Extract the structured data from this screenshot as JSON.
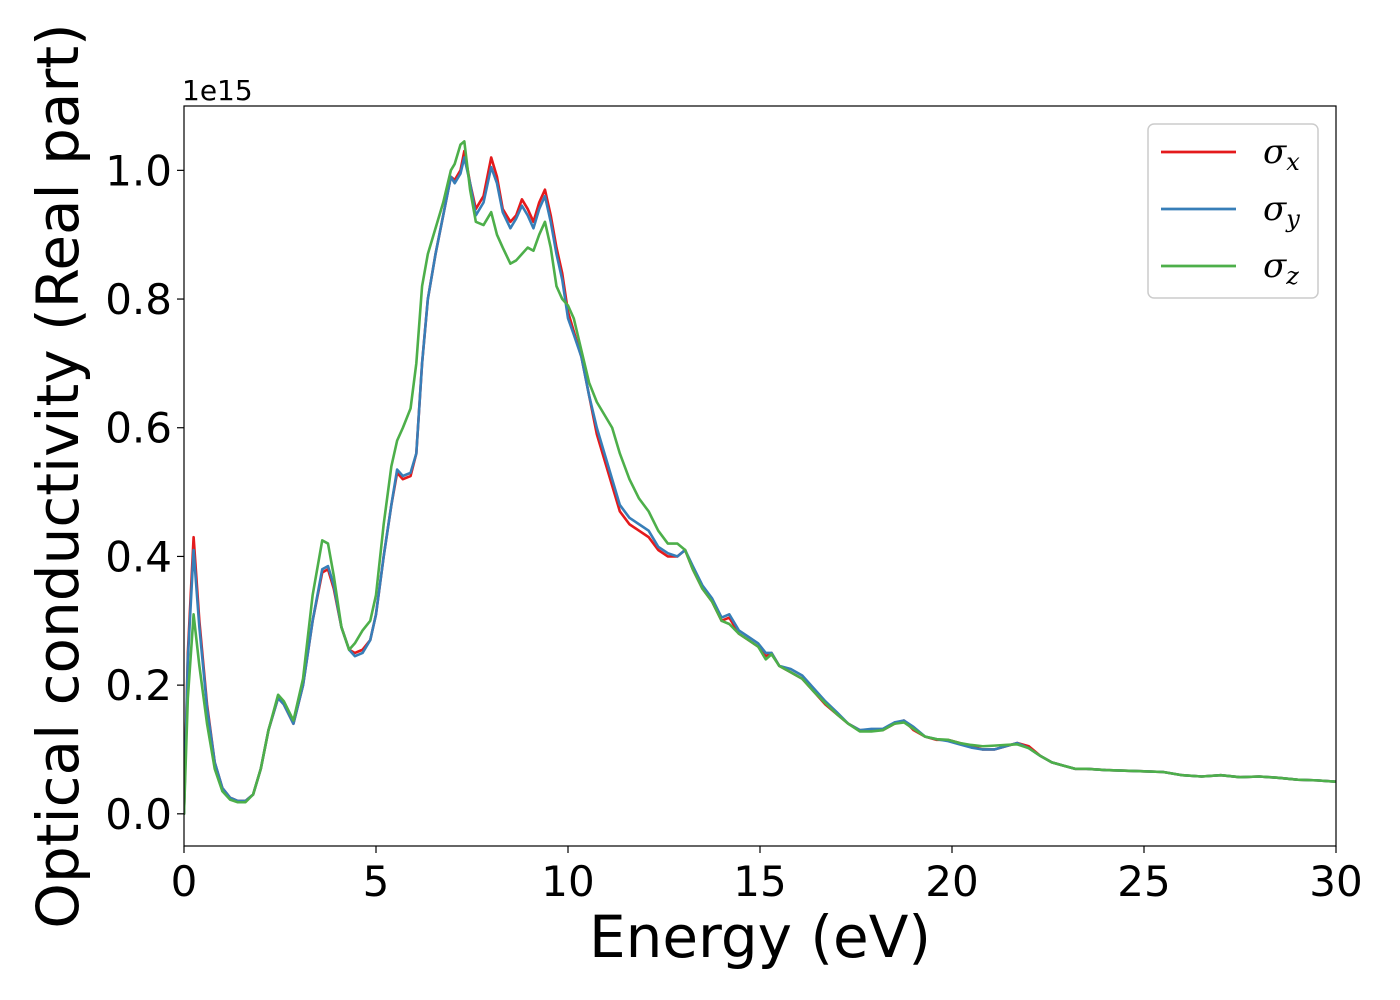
{
  "chart_data": {
    "type": "line",
    "xlabel": "Energy (eV)",
    "ylabel": "Optical conductivity (Real part)",
    "y_exponent_label": "1e15",
    "xlim": [
      0,
      30
    ],
    "ylim": [
      -0.05,
      1.1
    ],
    "x_ticks": [
      0,
      5,
      10,
      15,
      20,
      25,
      30
    ],
    "x_tick_labels": [
      "0",
      "5",
      "10",
      "15",
      "20",
      "25",
      "30"
    ],
    "y_ticks": [
      0.0,
      0.2,
      0.4,
      0.6,
      0.8,
      1.0
    ],
    "y_tick_labels": [
      "0.0",
      "0.2",
      "0.4",
      "0.6",
      "0.8",
      "1.0"
    ],
    "grid": false,
    "legend": {
      "placement": "top-right",
      "entries": [
        {
          "symbol": "σ",
          "subscript": "x",
          "color": "#e41a1c"
        },
        {
          "symbol": "σ",
          "subscript": "y",
          "color": "#377eb8"
        },
        {
          "symbol": "σ",
          "subscript": "z",
          "color": "#4daf4a"
        }
      ]
    },
    "series": [
      {
        "color": "#e41a1c",
        "x": [
          0,
          0.1,
          0.25,
          0.4,
          0.6,
          0.8,
          1.0,
          1.2,
          1.4,
          1.6,
          1.8,
          2.0,
          2.2,
          2.45,
          2.6,
          2.85,
          3.1,
          3.35,
          3.6,
          3.75,
          3.9,
          4.1,
          4.3,
          4.45,
          4.65,
          4.85,
          5.0,
          5.2,
          5.4,
          5.55,
          5.7,
          5.9,
          6.05,
          6.2,
          6.35,
          6.55,
          6.75,
          6.95,
          7.05,
          7.2,
          7.3,
          7.45,
          7.6,
          7.8,
          8.0,
          8.15,
          8.3,
          8.5,
          8.65,
          8.8,
          8.95,
          9.1,
          9.25,
          9.4,
          9.55,
          9.7,
          9.85,
          10.0,
          10.15,
          10.35,
          10.55,
          10.75,
          10.95,
          11.15,
          11.35,
          11.6,
          11.85,
          12.1,
          12.35,
          12.6,
          12.85,
          13.05,
          13.25,
          13.5,
          13.75,
          14.0,
          14.2,
          14.45,
          14.7,
          14.95,
          15.15,
          15.3,
          15.5,
          15.8,
          16.1,
          16.4,
          16.7,
          17.0,
          17.3,
          17.6,
          17.9,
          18.2,
          18.5,
          18.75,
          19.0,
          19.3,
          19.6,
          19.9,
          20.2,
          20.5,
          20.8,
          21.1,
          21.4,
          21.7,
          22.0,
          22.3,
          22.6,
          22.9,
          23.2,
          23.5,
          24.0,
          24.5,
          25.0,
          25.5,
          26.0,
          26.5,
          27.0,
          27.5,
          28.0,
          28.5,
          29.0,
          29.5,
          30.0
        ],
        "y": [
          0.0,
          0.25,
          0.43,
          0.3,
          0.17,
          0.08,
          0.04,
          0.025,
          0.02,
          0.02,
          0.03,
          0.07,
          0.13,
          0.18,
          0.17,
          0.14,
          0.2,
          0.3,
          0.375,
          0.38,
          0.35,
          0.29,
          0.255,
          0.25,
          0.255,
          0.27,
          0.31,
          0.4,
          0.48,
          0.53,
          0.52,
          0.525,
          0.56,
          0.7,
          0.8,
          0.87,
          0.93,
          0.99,
          0.985,
          1.0,
          1.03,
          0.98,
          0.94,
          0.96,
          1.02,
          0.99,
          0.94,
          0.92,
          0.93,
          0.955,
          0.94,
          0.92,
          0.95,
          0.97,
          0.93,
          0.88,
          0.84,
          0.78,
          0.75,
          0.71,
          0.65,
          0.59,
          0.55,
          0.51,
          0.47,
          0.45,
          0.44,
          0.43,
          0.41,
          0.4,
          0.4,
          0.41,
          0.38,
          0.35,
          0.33,
          0.3,
          0.305,
          0.28,
          0.27,
          0.26,
          0.245,
          0.25,
          0.23,
          0.22,
          0.21,
          0.19,
          0.17,
          0.155,
          0.14,
          0.13,
          0.13,
          0.13,
          0.14,
          0.145,
          0.13,
          0.12,
          0.115,
          0.115,
          0.11,
          0.105,
          0.1,
          0.1,
          0.105,
          0.11,
          0.105,
          0.09,
          0.08,
          0.075,
          0.07,
          0.07,
          0.068,
          0.067,
          0.066,
          0.065,
          0.06,
          0.058,
          0.06,
          0.057,
          0.058,
          0.056,
          0.053,
          0.052,
          0.05
        ]
      },
      {
        "color": "#377eb8",
        "x": [
          0,
          0.1,
          0.25,
          0.4,
          0.6,
          0.8,
          1.0,
          1.2,
          1.4,
          1.6,
          1.8,
          2.0,
          2.2,
          2.45,
          2.6,
          2.85,
          3.1,
          3.35,
          3.6,
          3.75,
          3.9,
          4.1,
          4.3,
          4.45,
          4.65,
          4.85,
          5.0,
          5.2,
          5.4,
          5.55,
          5.7,
          5.9,
          6.05,
          6.2,
          6.35,
          6.55,
          6.75,
          6.95,
          7.05,
          7.2,
          7.3,
          7.45,
          7.6,
          7.8,
          8.0,
          8.15,
          8.3,
          8.5,
          8.65,
          8.8,
          8.95,
          9.1,
          9.25,
          9.4,
          9.55,
          9.7,
          9.85,
          10.0,
          10.15,
          10.35,
          10.55,
          10.75,
          10.95,
          11.15,
          11.35,
          11.6,
          11.85,
          12.1,
          12.35,
          12.6,
          12.85,
          13.05,
          13.25,
          13.5,
          13.75,
          14.0,
          14.2,
          14.45,
          14.7,
          14.95,
          15.15,
          15.3,
          15.5,
          15.8,
          16.1,
          16.4,
          16.7,
          17.0,
          17.3,
          17.6,
          17.9,
          18.2,
          18.5,
          18.75,
          19.0,
          19.3,
          19.6,
          19.9,
          20.2,
          20.5,
          20.8,
          21.1,
          21.4,
          21.7,
          22.0,
          22.3,
          22.6,
          22.9,
          23.2,
          23.5,
          24.0,
          24.5,
          25.0,
          25.5,
          26.0,
          26.5,
          27.0,
          27.5,
          28.0,
          28.5,
          29.0,
          29.5,
          30.0
        ],
        "y": [
          0.0,
          0.24,
          0.41,
          0.29,
          0.165,
          0.08,
          0.04,
          0.025,
          0.02,
          0.02,
          0.03,
          0.07,
          0.13,
          0.18,
          0.17,
          0.14,
          0.2,
          0.3,
          0.38,
          0.385,
          0.355,
          0.29,
          0.255,
          0.245,
          0.25,
          0.27,
          0.31,
          0.4,
          0.48,
          0.535,
          0.525,
          0.53,
          0.56,
          0.7,
          0.8,
          0.87,
          0.93,
          0.99,
          0.98,
          0.995,
          1.02,
          0.98,
          0.93,
          0.95,
          1.005,
          0.98,
          0.935,
          0.91,
          0.925,
          0.945,
          0.93,
          0.91,
          0.94,
          0.96,
          0.92,
          0.87,
          0.83,
          0.77,
          0.745,
          0.71,
          0.65,
          0.6,
          0.56,
          0.52,
          0.48,
          0.46,
          0.45,
          0.44,
          0.415,
          0.405,
          0.4,
          0.41,
          0.385,
          0.355,
          0.335,
          0.305,
          0.31,
          0.285,
          0.275,
          0.265,
          0.25,
          0.25,
          0.23,
          0.225,
          0.215,
          0.195,
          0.175,
          0.158,
          0.14,
          0.13,
          0.132,
          0.132,
          0.142,
          0.145,
          0.135,
          0.12,
          0.116,
          0.113,
          0.108,
          0.103,
          0.1,
          0.1,
          0.105,
          0.11,
          0.102,
          0.09,
          0.08,
          0.075,
          0.07,
          0.07,
          0.068,
          0.067,
          0.066,
          0.065,
          0.06,
          0.058,
          0.06,
          0.057,
          0.058,
          0.056,
          0.053,
          0.052,
          0.05
        ]
      },
      {
        "color": "#4daf4a",
        "x": [
          0,
          0.1,
          0.25,
          0.4,
          0.6,
          0.8,
          1.0,
          1.2,
          1.4,
          1.6,
          1.8,
          2.0,
          2.2,
          2.45,
          2.6,
          2.85,
          3.1,
          3.35,
          3.6,
          3.75,
          3.9,
          4.1,
          4.3,
          4.45,
          4.65,
          4.85,
          5.0,
          5.2,
          5.4,
          5.55,
          5.7,
          5.9,
          6.05,
          6.2,
          6.35,
          6.55,
          6.75,
          6.95,
          7.05,
          7.2,
          7.3,
          7.45,
          7.6,
          7.8,
          8.0,
          8.15,
          8.3,
          8.5,
          8.65,
          8.8,
          8.95,
          9.1,
          9.25,
          9.4,
          9.55,
          9.7,
          9.85,
          10.0,
          10.15,
          10.35,
          10.55,
          10.75,
          10.95,
          11.15,
          11.35,
          11.6,
          11.85,
          12.1,
          12.35,
          12.6,
          12.85,
          13.05,
          13.25,
          13.5,
          13.75,
          14.0,
          14.2,
          14.45,
          14.7,
          14.95,
          15.15,
          15.3,
          15.5,
          15.8,
          16.1,
          16.4,
          16.7,
          17.0,
          17.3,
          17.6,
          17.9,
          18.2,
          18.5,
          18.75,
          19.0,
          19.3,
          19.6,
          19.9,
          20.2,
          20.5,
          20.8,
          21.1,
          21.4,
          21.7,
          22.0,
          22.3,
          22.6,
          22.9,
          23.2,
          23.5,
          24.0,
          24.5,
          25.0,
          25.5,
          26.0,
          26.5,
          27.0,
          27.5,
          28.0,
          28.5,
          29.0,
          29.5,
          30.0
        ],
        "y": [
          0.0,
          0.18,
          0.31,
          0.23,
          0.14,
          0.07,
          0.035,
          0.022,
          0.018,
          0.018,
          0.03,
          0.07,
          0.13,
          0.185,
          0.175,
          0.145,
          0.21,
          0.34,
          0.425,
          0.42,
          0.37,
          0.29,
          0.255,
          0.265,
          0.285,
          0.3,
          0.34,
          0.45,
          0.54,
          0.58,
          0.6,
          0.63,
          0.7,
          0.82,
          0.87,
          0.91,
          0.95,
          1.0,
          1.01,
          1.04,
          1.045,
          0.97,
          0.92,
          0.915,
          0.935,
          0.9,
          0.88,
          0.855,
          0.86,
          0.87,
          0.88,
          0.875,
          0.9,
          0.92,
          0.88,
          0.82,
          0.8,
          0.79,
          0.77,
          0.72,
          0.67,
          0.64,
          0.62,
          0.6,
          0.56,
          0.52,
          0.49,
          0.47,
          0.44,
          0.42,
          0.42,
          0.41,
          0.38,
          0.35,
          0.33,
          0.3,
          0.295,
          0.28,
          0.27,
          0.26,
          0.24,
          0.248,
          0.23,
          0.22,
          0.21,
          0.19,
          0.172,
          0.155,
          0.14,
          0.128,
          0.128,
          0.13,
          0.14,
          0.142,
          0.132,
          0.12,
          0.116,
          0.115,
          0.11,
          0.107,
          0.105,
          0.106,
          0.107,
          0.108,
          0.102,
          0.09,
          0.08,
          0.075,
          0.07,
          0.07,
          0.068,
          0.067,
          0.066,
          0.065,
          0.06,
          0.058,
          0.06,
          0.057,
          0.058,
          0.056,
          0.053,
          0.052,
          0.05
        ]
      }
    ]
  }
}
